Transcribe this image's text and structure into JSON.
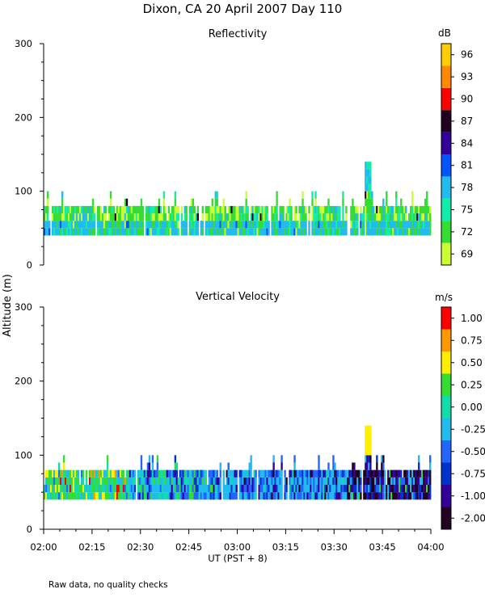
{
  "title": "Dixon, CA 20 April 2007  Day 110",
  "shared_ylabel": "Altitude (m)",
  "footnote": "Raw data, no quality checks",
  "chart_data": [
    {
      "type": "heatmap",
      "title": "Reflectivity",
      "xlabel": "UT  (PST + 8)",
      "ylabel": "Altitude (m)",
      "xlim_minutes": [
        0,
        120
      ],
      "ylim": [
        0,
        300
      ],
      "yticks": [
        "0",
        "100",
        "200",
        "300"
      ],
      "xticks": [
        "02:00",
        "02:15",
        "02:30",
        "02:45",
        "03:00",
        "03:15",
        "03:30",
        "03:45",
        "04:00"
      ],
      "colorbar": {
        "label": "dB",
        "labels": [
          "69",
          "72",
          "75",
          "78",
          "81",
          "84",
          "87",
          "90",
          "93",
          "96"
        ],
        "colors": [
          "#ccff33",
          "#33dd33",
          "#11eeaa",
          "#22bbee",
          "#0055ff",
          "#330099",
          "#220022",
          "#ff0000",
          "#ff8800",
          "#ffcc00"
        ]
      },
      "data_base_m": 40,
      "data_top_m_typical": 80,
      "echo_max_m": 140,
      "dominant_dB_low": 78,
      "dominant_dB_high": 72
    },
    {
      "type": "heatmap",
      "title": "Vertical Velocity",
      "xlabel": "UT  (PST + 8)",
      "ylabel": "Altitude (m)",
      "xlim_minutes": [
        0,
        120
      ],
      "ylim": [
        0,
        300
      ],
      "yticks": [
        "0",
        "100",
        "200",
        "300"
      ],
      "xticks": [
        "02:00",
        "02:15",
        "02:30",
        "02:45",
        "03:00",
        "03:15",
        "03:30",
        "03:45",
        "04:00"
      ],
      "colorbar": {
        "label": "m/s",
        "labels": [
          "-2.00",
          "-1.00",
          "-0.75",
          "-0.50",
          "-0.25",
          "0.00",
          "0.25",
          "0.50",
          "0.75",
          "1.00"
        ],
        "colors": [
          "#220022",
          "#330099",
          "#0033cc",
          "#2266ff",
          "#22bbee",
          "#11ddaa",
          "#33dd33",
          "#ffee00",
          "#ff9900",
          "#ff0000"
        ]
      },
      "data_base_m": 40,
      "data_top_m_typical": 80,
      "echo_max_m": 140,
      "trend": "positive velocities near 02:00, mostly -0.25 to -0.75 in mid period, strongly negative (-1 to -2) after 03:35"
    }
  ]
}
